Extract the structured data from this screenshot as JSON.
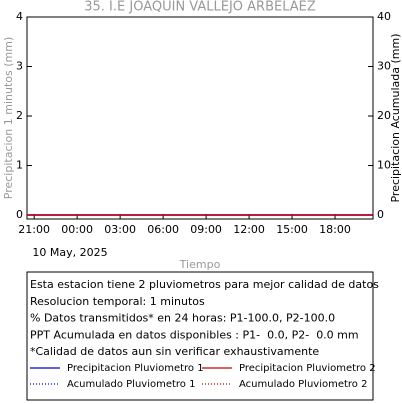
{
  "chart_data": {
    "type": "line",
    "title": "35. I.E JOAQUIN VALLEJO ARBELAEZ",
    "ylabel": "Precipitacion 1 minutos (mm)",
    "y2label": "Precipitacion Acumulada (mm)",
    "xlabel": "Tiempo",
    "date_label": "10 May, 2025",
    "x": [
      -0.5,
      23.6
    ],
    "xlim": [
      -0.5,
      23.65
    ],
    "xticks": [
      {
        "value": 0,
        "label": "21:00"
      },
      {
        "value": 3,
        "label": "00:00"
      },
      {
        "value": 6,
        "label": "03:00"
      },
      {
        "value": 9,
        "label": "06:00"
      },
      {
        "value": 12,
        "label": "09:00"
      },
      {
        "value": 15,
        "label": "12:00"
      },
      {
        "value": 18,
        "label": "15:00"
      },
      {
        "value": 21,
        "label": "18:00"
      }
    ],
    "ylim": [
      -0.08,
      4
    ],
    "yticks": [
      0,
      1,
      2,
      3,
      4
    ],
    "y2lim": [
      -0.8,
      40
    ],
    "y2ticks": [
      0,
      10,
      20,
      30,
      40
    ],
    "series": [
      {
        "name": "Precipitacion Pluviometro 1",
        "color": "#0000cc",
        "dash": false,
        "values": [
          0,
          0
        ]
      },
      {
        "name": "Precipitacion Pluviometro 2",
        "color": "#cc0000",
        "dash": false,
        "values": [
          0,
          0
        ]
      },
      {
        "name": "Acumulado Pluviometro 1",
        "color": "#0000cc",
        "dash": true,
        "axis": "y2",
        "values": [
          0,
          0
        ]
      },
      {
        "name": "Acumulado Pluviometro 2",
        "color": "#cc0000",
        "dash": true,
        "axis": "y2",
        "values": [
          0,
          0
        ]
      }
    ],
    "notes": [
      "Esta estacion tiene 2 pluviometros para mejor calidad de datos",
      "Resolucion temporal: 1 minutos",
      "% Datos transmitidos* en 24 horas: P1-100.0, P2-100.0",
      "PPT Acumulada en datos disponibles : P1-  0.0, P2-  0.0 mm",
      "*Calidad de datos aun sin verificar exhaustivamente"
    ]
  }
}
